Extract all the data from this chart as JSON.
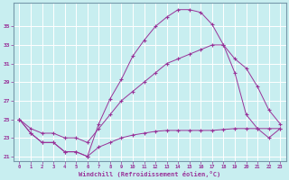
{
  "xlabel": "Windchill (Refroidissement éolien,°C)",
  "bg_color": "#c8eef0",
  "grid_color": "#aadddd",
  "line_color": "#993399",
  "xlim": [
    -0.5,
    23.5
  ],
  "ylim": [
    20.5,
    37.5
  ],
  "xticks": [
    0,
    1,
    2,
    3,
    4,
    5,
    6,
    7,
    8,
    9,
    10,
    11,
    12,
    13,
    14,
    15,
    16,
    17,
    18,
    19,
    20,
    21,
    22,
    23
  ],
  "yticks": [
    21,
    23,
    25,
    27,
    29,
    31,
    33,
    35
  ],
  "line1_x": [
    0,
    1,
    2,
    3,
    4,
    5,
    6,
    7,
    8,
    9,
    10,
    11,
    12,
    13,
    14,
    15,
    16,
    17,
    18,
    19,
    20,
    21,
    22,
    23
  ],
  "line1_y": [
    25.0,
    23.5,
    22.5,
    22.5,
    21.5,
    21.5,
    21.0,
    24.5,
    27.2,
    29.3,
    31.8,
    33.5,
    35.0,
    36.0,
    36.8,
    36.8,
    36.5,
    35.2,
    33.0,
    30.0,
    25.5,
    24.0,
    23.0,
    24.0
  ],
  "line2_x": [
    0,
    1,
    2,
    3,
    4,
    5,
    6,
    7,
    8,
    9,
    10,
    11,
    12,
    13,
    14,
    15,
    16,
    17,
    18,
    19,
    20,
    21,
    22,
    23
  ],
  "line2_y": [
    25.0,
    24.0,
    23.5,
    23.5,
    23.0,
    23.0,
    22.5,
    24.0,
    25.5,
    27.0,
    28.0,
    29.0,
    30.0,
    31.0,
    31.5,
    32.0,
    32.5,
    33.0,
    33.0,
    31.5,
    30.5,
    28.5,
    26.0,
    24.5
  ],
  "line3_x": [
    0,
    1,
    2,
    3,
    4,
    5,
    6,
    7,
    8,
    9,
    10,
    11,
    12,
    13,
    14,
    15,
    16,
    17,
    18,
    19,
    20,
    21,
    22,
    23
  ],
  "line3_y": [
    25.0,
    23.5,
    22.5,
    22.5,
    21.5,
    21.5,
    21.0,
    22.0,
    22.5,
    23.0,
    23.3,
    23.5,
    23.7,
    23.8,
    23.8,
    23.8,
    23.8,
    23.8,
    23.9,
    24.0,
    24.0,
    24.0,
    24.0,
    24.0
  ]
}
